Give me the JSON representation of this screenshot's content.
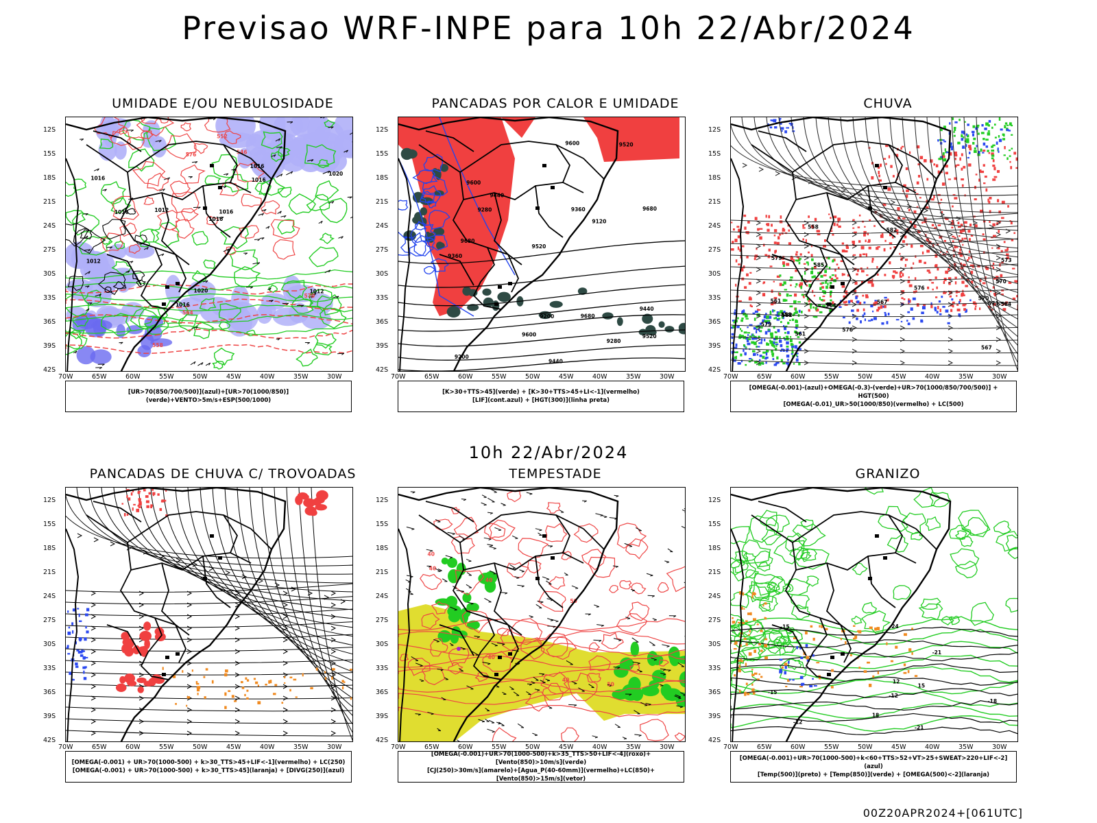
{
  "main_title": "Previsao WRF-INPE  para 10h 22/Abr/2024",
  "mid_title": "10h 22/Abr/2024",
  "footer": "00Z20APR2024+[061UTC]",
  "lat_ticks": [
    "12S",
    "15S",
    "18S",
    "21S",
    "24S",
    "27S",
    "30S",
    "33S",
    "36S",
    "39S",
    "42S"
  ],
  "lon_ticks": [
    "70W",
    "65W",
    "60W",
    "55W",
    "50W",
    "45W",
    "40W",
    "35W",
    "30W"
  ],
  "panels": [
    {
      "title": "UMIDADE E/OU NEBULOSIDADE",
      "legend": [
        "[UR>70(850/700/500)](azul)+[UR>70(1000/850)](verde)+VENTO>5m/s+ESP(500/1000)"
      ],
      "contour_labels": [
        "1012",
        "1012",
        "1016",
        "1016",
        "1016",
        "1020",
        "1016",
        "1016",
        "1016",
        "1016",
        "1012",
        "1020",
        "576",
        "570",
        "564",
        "558",
        "552",
        "546"
      ]
    },
    {
      "title": "PANCADAS POR CALOR E UMIDADE",
      "legend": [
        "[K>30+TTS>45](verde) + [K>30+TTS>45+LI<-1](vermelho)",
        "[LIF](cont.azul) + [HGT(300)](linha preta)"
      ],
      "contour_labels": [
        "9680",
        "9680",
        "9680",
        "9600",
        "9520",
        "9600",
        "9440",
        "9520",
        "9440",
        "9360",
        "9280",
        "9200",
        "9120",
        "9600",
        "9520",
        "9440",
        "9360",
        "9280",
        "9200"
      ]
    },
    {
      "title": "CHUVA",
      "legend": [
        "[OMEGA(-0.001)-(azul)+OMEGA(-0.3)-(verde)+UR>70(1000/850/700/500)] + HGT(500)",
        "[OMEGA(-0.01)_UR>50(1000/850)(vermelho) + LC(500)"
      ],
      "contour_labels": [
        "585",
        "582",
        "579",
        "576",
        "573",
        "570",
        "567",
        "564",
        "561",
        "558",
        "582",
        "579",
        "576",
        "573",
        "570",
        "567",
        "564",
        "561",
        "558"
      ]
    },
    {
      "title": "PANCADAS DE CHUVA C/ TROVOADAS",
      "legend": [
        "[OMEGA(-0.001) + UR>70(1000-500) + k>30_TTS>45+LIF<-1](vermelho) + LC(250)",
        "[OMEGA(-0.001) + UR>70(1000-500) + k>30_TTS>45](laranja) + [DIVG(250)](azul)"
      ],
      "contour_labels": []
    },
    {
      "title": "TEMPESTADE",
      "legend": [
        "[OMEGA(-0.001)+UR>70(1000-500)+k>35_TTS>50+LIF<-4](roxo)+[Vento(850)>10m/s](verde)",
        "[CJ(250)>30m/s](amarelo)+[Agua_P(40-60mm)](vermelho)+LC(850)+[Vento(850)>15m/s](vetor)"
      ],
      "contour_labels": [
        "40",
        "40",
        "50",
        "50",
        "40",
        "40",
        "40"
      ]
    },
    {
      "title": "GRANIZO",
      "legend": [
        "[OMEGA(-0.001)+UR>70(1000-500)+k<60+TTS>52+VT>25+SWEAT>220+LIF<-2](azul)",
        "[Temp(500)](preto) + [Temp(850)](verde) + [OMEGA(500)<-2](laranja)"
      ],
      "contour_labels": [
        "-21",
        "-12",
        "-15",
        "-18",
        "-21",
        "-24",
        "-15",
        "-12",
        "12",
        "15",
        "18"
      ]
    }
  ],
  "colors": {
    "blue_fill": "#b0b0f8",
    "blue_dark": "#6a6af0",
    "green": "#22cc22",
    "red_fill": "#f04040",
    "red_line": "#ee4444",
    "dark_teal": "#2e4a44",
    "orange": "#f08a20",
    "yellow": "#e0dd30",
    "blue_pix": "#2a48f0"
  }
}
